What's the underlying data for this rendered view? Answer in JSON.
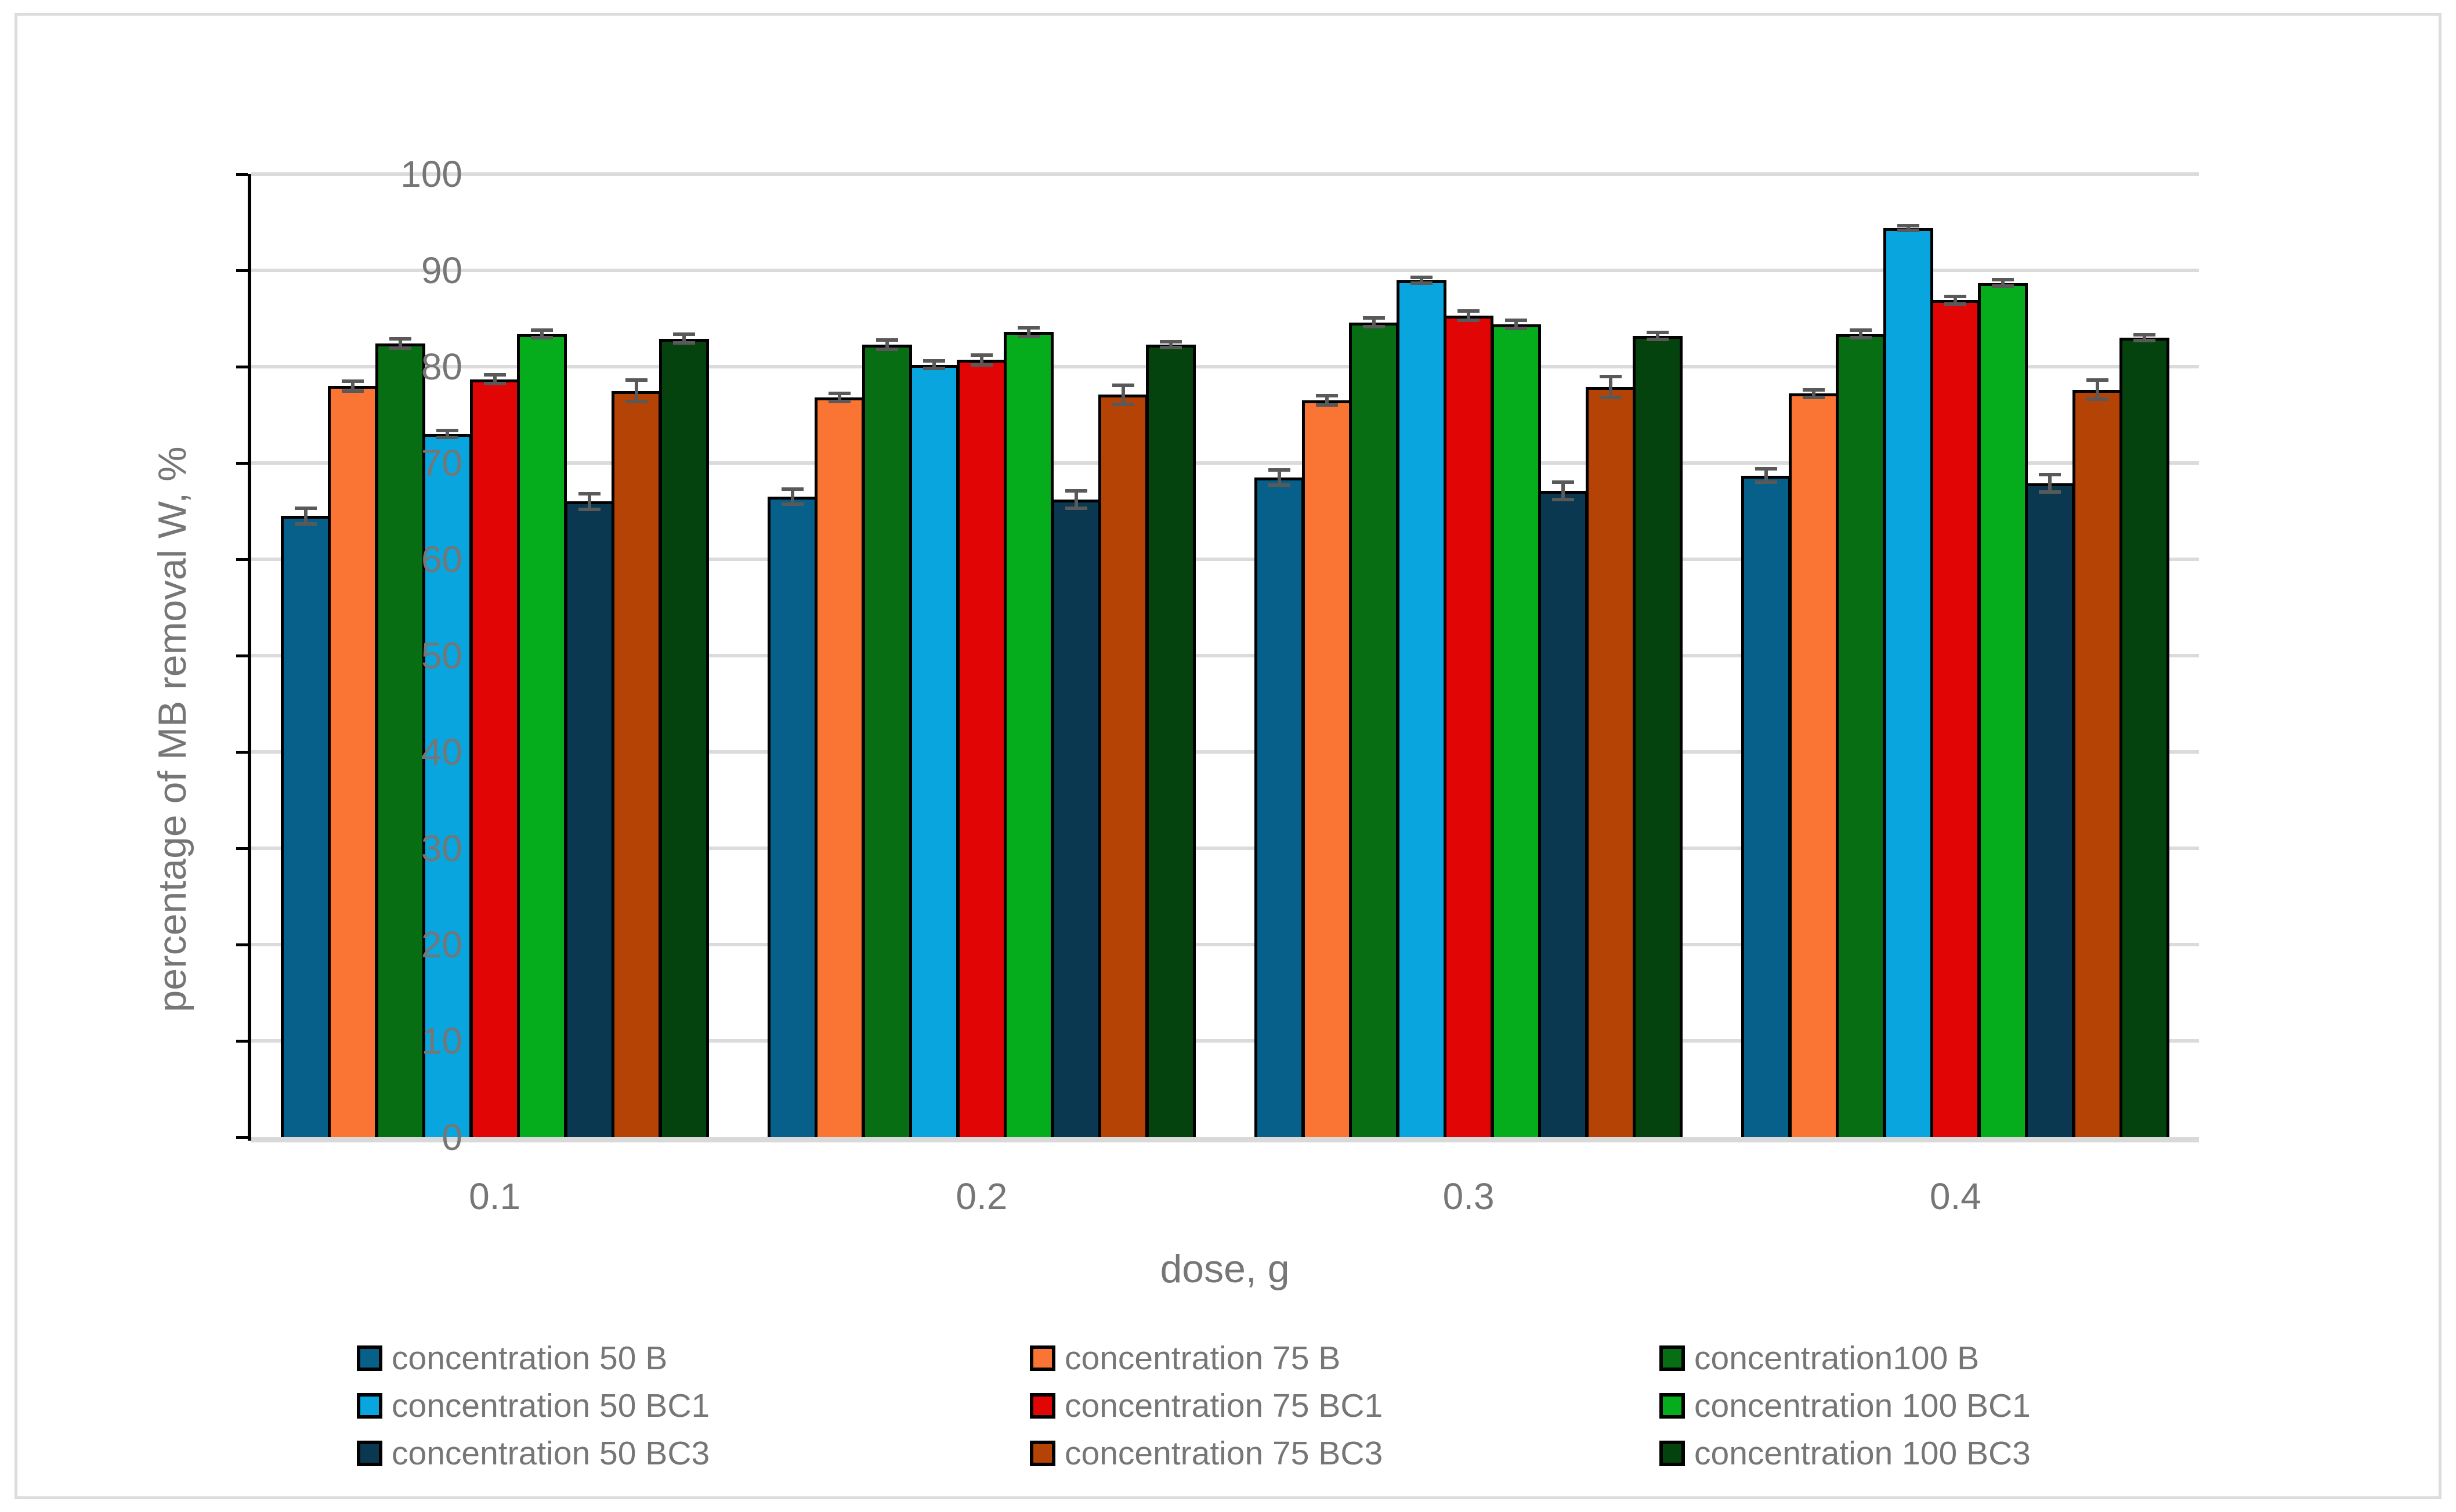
{
  "chart_data": {
    "type": "bar",
    "title": "",
    "xlabel": "dose, g",
    "ylabel": "percentage of MB removal W, %",
    "ylim": [
      0,
      100
    ],
    "ytick_step": 10,
    "ytick_labels": [
      "0",
      "10",
      "20",
      "30",
      "40",
      "50",
      "60",
      "70",
      "80",
      "90",
      "100"
    ],
    "grid": true,
    "legend_position": "bottom",
    "legend_columns": 3,
    "categories": [
      "0.1",
      "0.2",
      "0.3",
      "0.4"
    ],
    "series": [
      {
        "name": "concentration 50 B",
        "color": "#06608A",
        "values": [
          64.5,
          66.5,
          68.5,
          68.7
        ],
        "errors": [
          0.8,
          0.8,
          0.8,
          0.7
        ]
      },
      {
        "name": "concentration 75 B",
        "color": "#FA7433",
        "values": [
          78.0,
          76.8,
          76.5,
          77.2
        ],
        "errors": [
          0.5,
          0.4,
          0.5,
          0.4
        ]
      },
      {
        "name": "concentration100 B",
        "color": "#076E14",
        "values": [
          82.4,
          82.3,
          84.6,
          83.4
        ],
        "errors": [
          0.5,
          0.5,
          0.45,
          0.4
        ]
      },
      {
        "name": "concentration 50 BC1",
        "color": "#08A5DE",
        "values": [
          73.0,
          80.2,
          89.0,
          94.4
        ],
        "errors": [
          0.35,
          0.4,
          0.3,
          0.25
        ]
      },
      {
        "name": "concentration 75 BC1",
        "color": "#E10505",
        "values": [
          78.7,
          80.7,
          85.3,
          86.9
        ],
        "errors": [
          0.45,
          0.5,
          0.5,
          0.4
        ]
      },
      {
        "name": "concentration 100 BC1",
        "color": "#05AC1B",
        "values": [
          83.4,
          83.6,
          84.4,
          88.7
        ],
        "errors": [
          0.4,
          0.45,
          0.45,
          0.35
        ]
      },
      {
        "name": "concentration 50 BC3",
        "color": "#093850",
        "values": [
          66.0,
          66.2,
          67.1,
          67.9
        ],
        "errors": [
          0.8,
          0.9,
          0.9,
          0.9
        ]
      },
      {
        "name": "concentration 75 BC3",
        "color": "#B44305",
        "values": [
          77.5,
          77.1,
          77.9,
          77.6
        ],
        "errors": [
          1.1,
          1.0,
          1.1,
          1.0
        ]
      },
      {
        "name": "concentration 100 BC3",
        "color": "#05430E",
        "values": [
          82.9,
          82.3,
          83.2,
          83.0
        ],
        "errors": [
          0.45,
          0.3,
          0.35,
          0.3
        ]
      }
    ],
    "colors": {
      "gridline": "#DBDBDB",
      "baseline": "#D9D9D9",
      "axis_line": "#000000",
      "bar_outline": "#000000",
      "error_bar": "#595959",
      "label_text": "#767676",
      "frame_border": "#DCDCDC",
      "background": "#FFFFFF"
    }
  }
}
